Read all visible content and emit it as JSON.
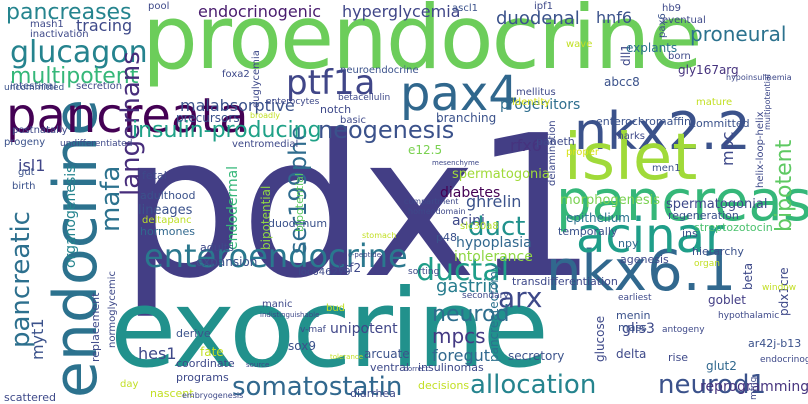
{
  "words": [
    {
      "text": "pdx1",
      "color": "#433e85"
    },
    {
      "text": "proendocrine",
      "color": "#6ccd5a"
    },
    {
      "text": "exocrine",
      "color": "#21918c"
    },
    {
      "text": "endocrine",
      "color": "#2c728e"
    },
    {
      "text": "pancreata",
      "color": "#440154"
    },
    {
      "text": "nkx2.2",
      "color": "#3b528b"
    },
    {
      "text": "nkx6.1",
      "color": "#31688e"
    },
    {
      "text": "pancreas",
      "color": "#35b779"
    },
    {
      "text": "islet",
      "color": "#a0da39"
    },
    {
      "text": "acinar",
      "color": "#1f9e89"
    },
    {
      "text": "pax4",
      "color": "#30678d"
    },
    {
      "text": "glucagon",
      "color": "#25838e"
    },
    {
      "text": "pancreatic",
      "color": "#2d708e"
    },
    {
      "text": "enteroendocrine",
      "color": "#2a788e"
    },
    {
      "text": "ptf1a",
      "color": "#404688"
    },
    {
      "text": "multipotent",
      "color": "#35b779"
    },
    {
      "text": "neogenesis",
      "color": "#3b528b"
    },
    {
      "text": "mafa",
      "color": "#2c728e"
    },
    {
      "text": "ductal",
      "color": "#1f9e89"
    },
    {
      "text": "langerhans",
      "color": "#472d7b"
    },
    {
      "text": "ser199phe",
      "color": "#2f6c8e"
    },
    {
      "text": "somatostatin",
      "color": "#31688e"
    },
    {
      "text": "allocation",
      "color": "#25848e"
    },
    {
      "text": "neurod1",
      "color": "#3b528b"
    },
    {
      "text": "arx",
      "color": "#3e4989"
    },
    {
      "text": "neurod",
      "color": "#2e6e8e"
    },
    {
      "text": "duct",
      "color": "#21918c"
    },
    {
      "text": "insulin-producing",
      "color": "#1fa187"
    },
    {
      "text": "pancreases",
      "color": "#25848e"
    },
    {
      "text": "endocrinogenic",
      "color": "#481b6d"
    },
    {
      "text": "hyperglycemia",
      "color": "#404688"
    },
    {
      "text": "duodenal",
      "color": "#3b528b"
    },
    {
      "text": "hnf6",
      "color": "#3b528b"
    },
    {
      "text": "proneural",
      "color": "#2c728e"
    },
    {
      "text": "tracing",
      "color": "#3e4989"
    },
    {
      "text": "malabsorptive",
      "color": "#3b528b"
    },
    {
      "text": "progenitors",
      "color": "#2e6e8e"
    },
    {
      "text": "rfx6",
      "color": "#46337e"
    },
    {
      "text": "mpc",
      "color": "#3e4989"
    },
    {
      "text": "bipotent",
      "color": "#5ec962"
    },
    {
      "text": "gastrin",
      "color": "#287d8e"
    },
    {
      "text": "mpcs",
      "color": "#443a83"
    },
    {
      "text": "foregut",
      "color": "#31688e"
    },
    {
      "text": "unipotent",
      "color": "#404688"
    },
    {
      "text": "ghrelin",
      "color": "#3b528b"
    },
    {
      "text": "diabetes",
      "color": "#440154"
    },
    {
      "text": "acini",
      "color": "#3e4989"
    },
    {
      "text": "isl1",
      "color": "#404688"
    },
    {
      "text": "hes1",
      "color": "#3e4989"
    },
    {
      "text": "myt1",
      "color": "#3b528b"
    },
    {
      "text": "glis3",
      "color": "#3e4989"
    },
    {
      "text": "intolerance",
      "color": "#8fd744"
    },
    {
      "text": "hypoplasia",
      "color": "#31688e"
    },
    {
      "text": "expansion",
      "color": "#3b528b"
    },
    {
      "text": "tcf2",
      "color": "#3e4989"
    },
    {
      "text": "sox9",
      "color": "#3b528b"
    },
    {
      "text": "delta",
      "color": "#3e4989"
    },
    {
      "text": "goblet",
      "color": "#433e85"
    },
    {
      "text": "glut2",
      "color": "#31688e"
    },
    {
      "text": "pdx1cre",
      "color": "#3e4989"
    },
    {
      "text": "reprogramming",
      "color": "#46337e"
    },
    {
      "text": "ar42j-b13",
      "color": "#3b528b"
    },
    {
      "text": "transdifferentiation",
      "color": "#3e4989"
    },
    {
      "text": "organogenesis",
      "color": "#25848e"
    },
    {
      "text": "endodermal",
      "color": "#35b779"
    },
    {
      "text": "bipotential",
      "color": "#8fd744"
    },
    {
      "text": "spermatogonia",
      "color": "#a0da39"
    },
    {
      "text": "spermatogonial",
      "color": "#3e4989"
    },
    {
      "text": "morphogenesis",
      "color": "#7ad151"
    },
    {
      "text": "epithelium",
      "color": "#2c728e"
    },
    {
      "text": "acinar",
      "color": "#35b779"
    },
    {
      "text": "regeneration",
      "color": "#3b528b"
    },
    {
      "text": "streptozotocin",
      "color": "#4ac16d"
    },
    {
      "text": "insulinomas",
      "color": "#3e4989"
    },
    {
      "text": "arcuate",
      "color": "#3b528b"
    },
    {
      "text": "ventral",
      "color": "#3e4989"
    },
    {
      "text": "secretory",
      "color": "#3b528b"
    },
    {
      "text": "diarrhea",
      "color": "#3e4989"
    },
    {
      "text": "decisions",
      "color": "#c2df23"
    },
    {
      "text": "glucose",
      "color": "#3e4989"
    },
    {
      "text": "pancreatectomy",
      "color": "#2c728e"
    },
    {
      "text": "mass",
      "color": "#3b528b"
    },
    {
      "text": "menin",
      "color": "#3b528b"
    },
    {
      "text": "rise",
      "color": "#3e4989"
    },
    {
      "text": "hierarchy",
      "color": "#3b528b"
    },
    {
      "text": "beta",
      "color": "#3e4989"
    },
    {
      "text": "npy",
      "color": "#31688e"
    },
    {
      "text": "ins",
      "color": "#3b528b"
    },
    {
      "text": "agenesis",
      "color": "#3e4989"
    },
    {
      "text": "temporally",
      "color": "#3b528b"
    },
    {
      "text": "programs",
      "color": "#3e4989"
    },
    {
      "text": "coordinate",
      "color": "#3e4989"
    },
    {
      "text": "fate",
      "color": "#c2df23"
    },
    {
      "text": "replacement",
      "color": "#3e4989"
    },
    {
      "text": "normoglycemic",
      "color": "#3e4989"
    },
    {
      "text": "derive",
      "color": "#3b528b"
    },
    {
      "text": "scattered",
      "color": "#3e4989"
    },
    {
      "text": "nascent",
      "color": "#c2df23"
    },
    {
      "text": "manic",
      "color": "#3e4989"
    },
    {
      "text": "adults",
      "color": "#3e4989"
    },
    {
      "text": "hormones",
      "color": "#31688e"
    },
    {
      "text": "lineages",
      "color": "#3b528b"
    },
    {
      "text": "deltapanc",
      "color": "#bddf26"
    },
    {
      "text": "adulthood",
      "color": "#3b528b"
    },
    {
      "text": "fetal",
      "color": "#3e4989"
    },
    {
      "text": "duodenum",
      "color": "#3b528b"
    },
    {
      "text": "bipotential",
      "color": "#5ec962"
    },
    {
      "text": "loc646279",
      "color": "#3e4989"
    },
    {
      "text": "p48",
      "color": "#3b528b"
    },
    {
      "text": "slc30a8",
      "color": "#b5de2b"
    },
    {
      "text": "e12.5",
      "color": "#7ad151"
    },
    {
      "text": "branching",
      "color": "#3b528b"
    },
    {
      "text": "identity",
      "color": "#d8e219"
    },
    {
      "text": "mellitus",
      "color": "#3e4989"
    },
    {
      "text": "abcc8",
      "color": "#3b528b"
    },
    {
      "text": "gly167arg",
      "color": "#46337e"
    },
    {
      "text": "dll1",
      "color": "#3e4989"
    },
    {
      "text": "mature",
      "color": "#c2df23"
    },
    {
      "text": "committed",
      "color": "#3b528b"
    },
    {
      "text": "helix-loop-helix",
      "color": "#3e4989"
    },
    {
      "text": "enterochromaffin",
      "color": "#3b528b"
    },
    {
      "text": "marks",
      "color": "#3e4989"
    },
    {
      "text": "paneth",
      "color": "#3e4989"
    },
    {
      "text": "proper",
      "color": "#d8e219"
    },
    {
      "text": "delamination",
      "color": "#3e4989"
    },
    {
      "text": "men1",
      "color": "#3b528b"
    },
    {
      "text": "explants",
      "color": "#2c728e"
    },
    {
      "text": "born",
      "color": "#3e4989"
    },
    {
      "text": "pax6",
      "color": "#3b528b"
    },
    {
      "text": "eventual",
      "color": "#3e4989"
    },
    {
      "text": "hb9",
      "color": "#3e4989"
    },
    {
      "text": "ipf1",
      "color": "#3e4989"
    },
    {
      "text": "ascl1",
      "color": "#3b528b"
    },
    {
      "text": "pool",
      "color": "#3e4989"
    },
    {
      "text": "mash1",
      "color": "#3e4989"
    },
    {
      "text": "inactivation",
      "color": "#3e4989"
    },
    {
      "text": "uncommitted",
      "color": "#3b528b"
    },
    {
      "text": "intestinal",
      "color": "#3b528b"
    },
    {
      "text": "secretion",
      "color": "#3e4989"
    },
    {
      "text": "precursors",
      "color": "#3b528b"
    },
    {
      "text": "foxa2",
      "color": "#3e4989"
    },
    {
      "text": "euglycemia",
      "color": "#3e4989"
    },
    {
      "text": "enterocytes",
      "color": "#3e4989"
    },
    {
      "text": "betacellulin",
      "color": "#3e4989"
    },
    {
      "text": "neuroendocrine",
      "color": "#3b528b"
    },
    {
      "text": "notch",
      "color": "#3e4989"
    },
    {
      "text": "basic",
      "color": "#3e4989"
    },
    {
      "text": "ventromedial",
      "color": "#3e4989"
    },
    {
      "text": "postnatally",
      "color": "#3e4989"
    },
    {
      "text": "progeny",
      "color": "#3b528b"
    },
    {
      "text": "gut",
      "color": "#3b528b"
    },
    {
      "text": "birth",
      "color": "#3b528b"
    },
    {
      "text": "undifferentiated",
      "color": "#3e4989"
    },
    {
      "text": "npa2",
      "color": "#3e4989"
    },
    {
      "text": "gata6",
      "color": "#3e4989"
    },
    {
      "text": "v-maf",
      "color": "#3e4989"
    },
    {
      "text": "bud",
      "color": "#c2df23"
    },
    {
      "text": "window",
      "color": "#c2df23"
    },
    {
      "text": "earliest",
      "color": "#3e4989"
    },
    {
      "text": "antogeny",
      "color": "#3e4989"
    },
    {
      "text": "hypothalamic",
      "color": "#3e4989"
    },
    {
      "text": "endocrinogenesis",
      "color": "#3e4989"
    },
    {
      "text": "mfng",
      "color": "#3e4989"
    },
    {
      "text": "secondary",
      "color": "#3e4989"
    },
    {
      "text": "sorting",
      "color": "#3e4989"
    },
    {
      "text": "day",
      "color": "#c2df23"
    },
    {
      "text": "embryogenesis",
      "color": "#3e4989"
    },
    {
      "text": "hypoinsulinemia",
      "color": "#3e4989"
    },
    {
      "text": "multipotential",
      "color": "#3e4989"
    },
    {
      "text": "wave",
      "color": "#c2df23"
    },
    {
      "text": "organ",
      "color": "#c2df23"
    },
    {
      "text": "stomach",
      "color": "#c2df23"
    },
    {
      "text": "roadmap",
      "color": "#3e4989"
    },
    {
      "text": "broadly",
      "color": "#c2df23"
    },
    {
      "text": "compartment",
      "color": "#3e4989"
    },
    {
      "text": "homeodomain",
      "color": "#3e4989"
    },
    {
      "text": "mesenchyme",
      "color": "#3e4989"
    },
    {
      "text": "c-peptide",
      "color": "#3e4989"
    },
    {
      "text": "indistinguishable",
      "color": "#3e4989"
    },
    {
      "text": "maintaining",
      "color": "#3e4989"
    },
    {
      "text": "tolerance",
      "color": "#c2df23"
    },
    {
      "text": "correct",
      "color": "#3e4989"
    },
    {
      "text": "source",
      "color": "#3e4989"
    },
    {
      "text": "mature",
      "color": "#c2df23"
    }
  ]
}
